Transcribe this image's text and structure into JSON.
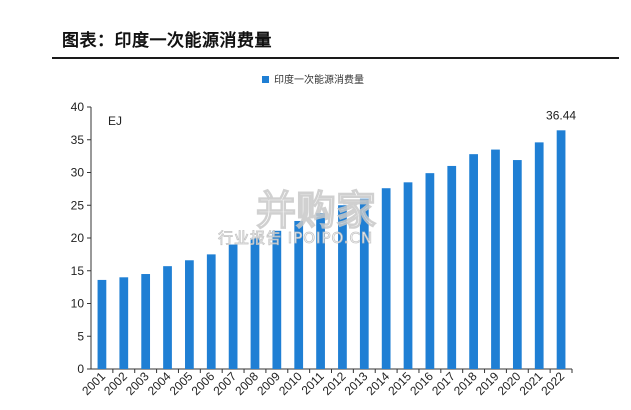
{
  "figure_title": "图表：印度一次能源消费量",
  "watermark": {
    "main": "并购家",
    "sub": "行业报告 IPOIPO.CN"
  },
  "chart_data": {
    "type": "bar",
    "title": "",
    "unit_label": "EJ",
    "xlabel": "",
    "ylabel": "",
    "ylim": [
      0,
      40
    ],
    "yticks": [
      0,
      5,
      10,
      15,
      20,
      25,
      30,
      35,
      40
    ],
    "grid": false,
    "legend": "top-center",
    "bar_color": "#1f7fd4",
    "categories": [
      "2001",
      "2002",
      "2003",
      "2004",
      "2005",
      "2006",
      "2007",
      "2008",
      "2009",
      "2010",
      "2011",
      "2012",
      "2013",
      "2014",
      "2015",
      "2016",
      "2017",
      "2018",
      "2019",
      "2020",
      "2021",
      "2022"
    ],
    "series": [
      {
        "name": "印度一次能源消费量",
        "values": [
          13.6,
          14.0,
          14.5,
          15.7,
          16.6,
          17.5,
          19.0,
          20.0,
          21.1,
          22.6,
          23.8,
          25.0,
          26.0,
          27.6,
          28.5,
          29.9,
          31.0,
          32.8,
          33.5,
          31.9,
          34.6,
          36.44
        ]
      }
    ],
    "data_labels": [
      {
        "category": "2022",
        "text": "36.44"
      }
    ]
  }
}
